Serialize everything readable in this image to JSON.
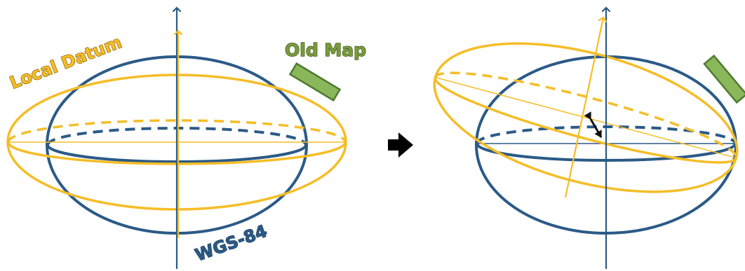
{
  "labels": {
    "local_datum": "Local Datum",
    "old_map": "Old Map",
    "wgs84": "WGS-84"
  },
  "colors": {
    "wgs84_blue": "#2b5a87",
    "local_orange": "#f5bd27",
    "map_green": "#8ab75a",
    "map_green_dark": "#4e7a2e",
    "label_green": "#7a9a3e",
    "arrow_black": "#111111"
  },
  "icons": {
    "transition": "right-arrow-icon",
    "shift": "double-arrow-icon"
  }
}
